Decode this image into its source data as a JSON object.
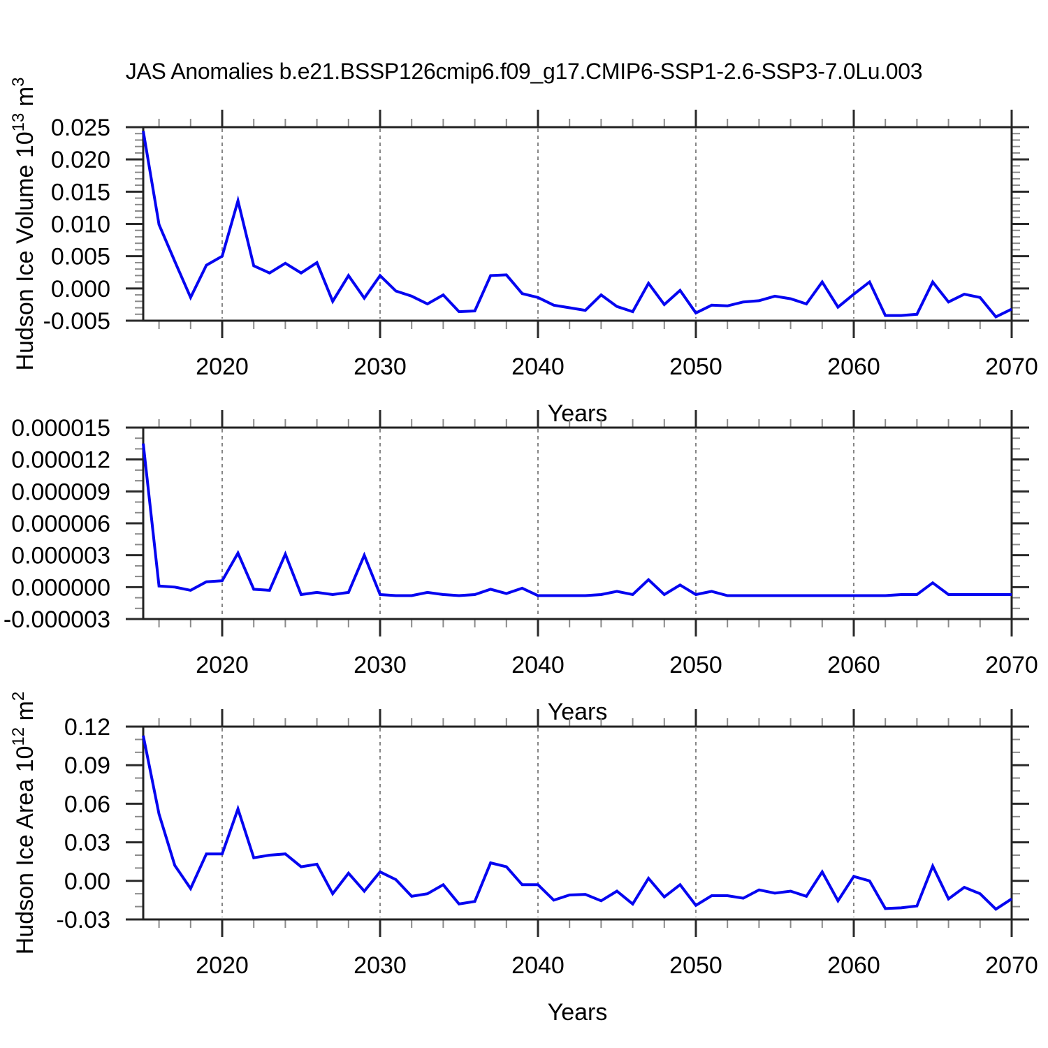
{
  "title": "JAS Anomalies b.e21.BSSP126cmip6.f09_g17.CMIP6-SSP1-2.6-SSP3-7.0Lu.003",
  "style": {
    "line_color": "#0505f0",
    "grid_color": "#878787",
    "border_color": "#222222",
    "major_tick_color": "#2a2a2a",
    "minor_tick_color": "#8a8a8a",
    "text_color": "#000000"
  },
  "chart_data": [
    {
      "type": "line",
      "name": "hudson-ice-volume",
      "title": "",
      "xlabel": "Years",
      "ylabel_parts": [
        {
          "text": "Hudson Ice Volume 10"
        },
        {
          "text": "13",
          "sup": true
        },
        {
          "text": " m"
        },
        {
          "text": "3",
          "sup": true
        }
      ],
      "x_range": [
        2015,
        2070
      ],
      "xticks": [
        2020,
        2030,
        2040,
        2050,
        2060,
        2070
      ],
      "x_minor_step": 2,
      "ylim": [
        -0.005,
        0.025
      ],
      "yticks": [
        0.025,
        0.02,
        0.015,
        0.01,
        0.005,
        0.0,
        -0.005
      ],
      "ytick_labels": [
        "0.025",
        "0.020",
        "0.015",
        "0.010",
        "0.005",
        "0.000",
        "-0.005"
      ],
      "y_minor_step": 0.001,
      "grid": "vertical-dashed",
      "legend": "none",
      "x_start": 2015,
      "values": [
        0.0244,
        0.0099,
        0.0042,
        -0.0014,
        0.0036,
        0.005,
        0.0136,
        0.0035,
        0.0024,
        0.0039,
        0.0024,
        0.004,
        -0.002,
        0.002,
        -0.0015,
        0.002,
        -0.0004,
        -0.0012,
        -0.0024,
        -0.001,
        -0.0036,
        -0.0035,
        0.002,
        0.0021,
        -0.0008,
        -0.0014,
        -0.0026,
        -0.003,
        -0.0034,
        -0.001,
        -0.0028,
        -0.0036,
        0.0008,
        -0.0025,
        -0.0003,
        -0.0038,
        -0.0026,
        -0.0027,
        -0.0021,
        -0.0019,
        -0.0012,
        -0.0016,
        -0.0024,
        0.001,
        -0.0029,
        -0.0009,
        0.001,
        -0.0042,
        -0.0042,
        -0.004,
        0.001,
        -0.0021,
        -0.0009,
        -0.0014,
        -0.0044,
        -0.0032
      ]
    },
    {
      "type": "line",
      "name": "hudson-ice-middle",
      "title": "",
      "xlabel": "Years",
      "ylabel_parts": [],
      "x_range": [
        2015,
        2070
      ],
      "xticks": [
        2020,
        2030,
        2040,
        2050,
        2060,
        2070
      ],
      "x_minor_step": 2,
      "ylim": [
        -3e-06,
        1.5e-05
      ],
      "yticks": [
        1.5e-05,
        1.2e-05,
        9e-06,
        6e-06,
        3e-06,
        0.0,
        -3e-06
      ],
      "ytick_labels": [
        "0.000015",
        "0.000012",
        "0.000009",
        "0.000006",
        "0.000003",
        "0.000000",
        "-0.000003"
      ],
      "y_minor_step": 1e-06,
      "grid": "vertical-dashed",
      "legend": "none",
      "x_start": 2015,
      "values": [
        1.35e-05,
        1e-07,
        0.0,
        -3e-07,
        5e-07,
        6e-07,
        3.2e-06,
        -2e-07,
        -3e-07,
        3.1e-06,
        -7e-07,
        -5e-07,
        -7e-07,
        -5e-07,
        3e-06,
        -7e-07,
        -8e-07,
        -8e-07,
        -5e-07,
        -7e-07,
        -8e-07,
        -7e-07,
        -2e-07,
        -6e-07,
        -1e-07,
        -8e-07,
        -8e-07,
        -8e-07,
        -8e-07,
        -7e-07,
        -4e-07,
        -7e-07,
        7e-07,
        -7e-07,
        2e-07,
        -7e-07,
        -4e-07,
        -8e-07,
        -8e-07,
        -8e-07,
        -8e-07,
        -8e-07,
        -8e-07,
        -8e-07,
        -8e-07,
        -8e-07,
        -8e-07,
        -8e-07,
        -7e-07,
        -7e-07,
        4e-07,
        -7e-07,
        -7e-07,
        -7e-07,
        -7e-07,
        -7e-07
      ]
    },
    {
      "type": "line",
      "name": "hudson-ice-area",
      "title": "",
      "xlabel": "Years",
      "ylabel_parts": [
        {
          "text": "Hudson Ice Area 10"
        },
        {
          "text": "12",
          "sup": true
        },
        {
          "text": " m"
        },
        {
          "text": "2",
          "sup": true
        }
      ],
      "x_range": [
        2015,
        2070
      ],
      "xticks": [
        2020,
        2030,
        2040,
        2050,
        2060,
        2070
      ],
      "x_minor_step": 2,
      "ylim": [
        -0.03,
        0.12
      ],
      "yticks": [
        0.12,
        0.09,
        0.06,
        0.03,
        0.0,
        -0.03
      ],
      "ytick_labels": [
        "0.12",
        "0.09",
        "0.06",
        "0.03",
        "0.00",
        "-0.03"
      ],
      "y_minor_step": 0.01,
      "grid": "vertical-dashed",
      "legend": "none",
      "x_start": 2015,
      "values": [
        0.113,
        0.052,
        0.012,
        -0.006,
        0.021,
        0.021,
        0.056,
        0.018,
        0.02,
        0.021,
        0.011,
        0.013,
        -0.01,
        0.006,
        -0.008,
        0.007,
        0.001,
        -0.012,
        -0.01,
        -0.003,
        -0.018,
        -0.016,
        0.014,
        0.011,
        -0.003,
        -0.003,
        -0.015,
        -0.011,
        -0.0105,
        -0.0155,
        -0.008,
        -0.018,
        0.002,
        -0.0125,
        -0.003,
        -0.019,
        -0.0115,
        -0.0115,
        -0.0135,
        -0.007,
        -0.0095,
        -0.008,
        -0.012,
        0.007,
        -0.0155,
        0.0035,
        0.0,
        -0.0215,
        -0.021,
        -0.0195,
        0.0115,
        -0.014,
        -0.005,
        -0.01,
        -0.022,
        -0.014
      ]
    }
  ]
}
